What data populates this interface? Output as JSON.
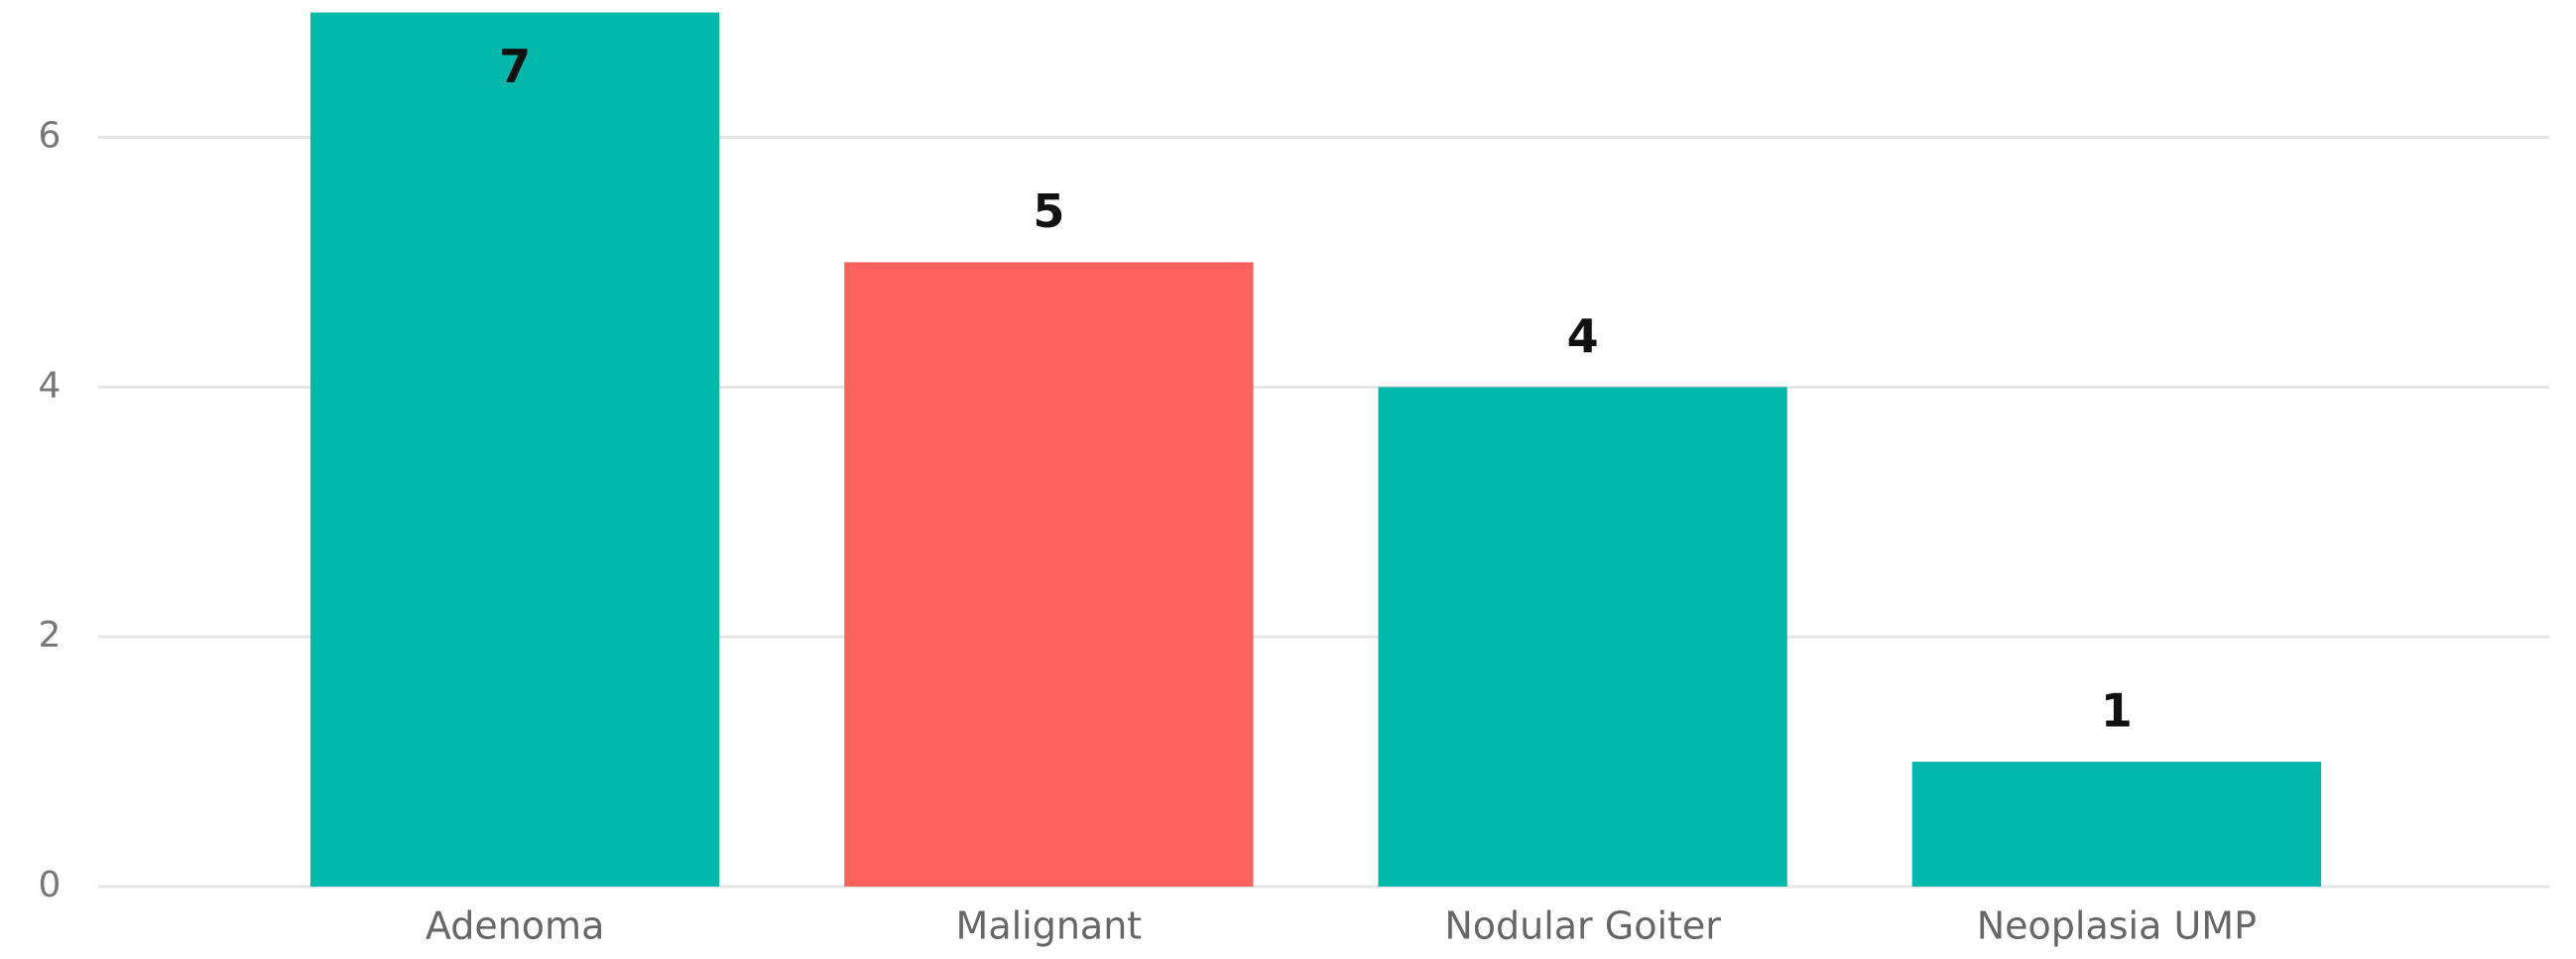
{
  "chart_data": {
    "type": "bar",
    "categories": [
      "Adenoma",
      "Malignant",
      "Nodular Goiter",
      "Neoplasia UMP"
    ],
    "values": [
      7,
      5,
      4,
      1
    ],
    "colors": [
      "#01B8AA",
      "#FD625E",
      "#01B8AA",
      "#01B8AA"
    ],
    "ylim": [
      0,
      7.1
    ],
    "yticks": [
      0,
      2,
      4,
      6
    ],
    "grid": true
  }
}
